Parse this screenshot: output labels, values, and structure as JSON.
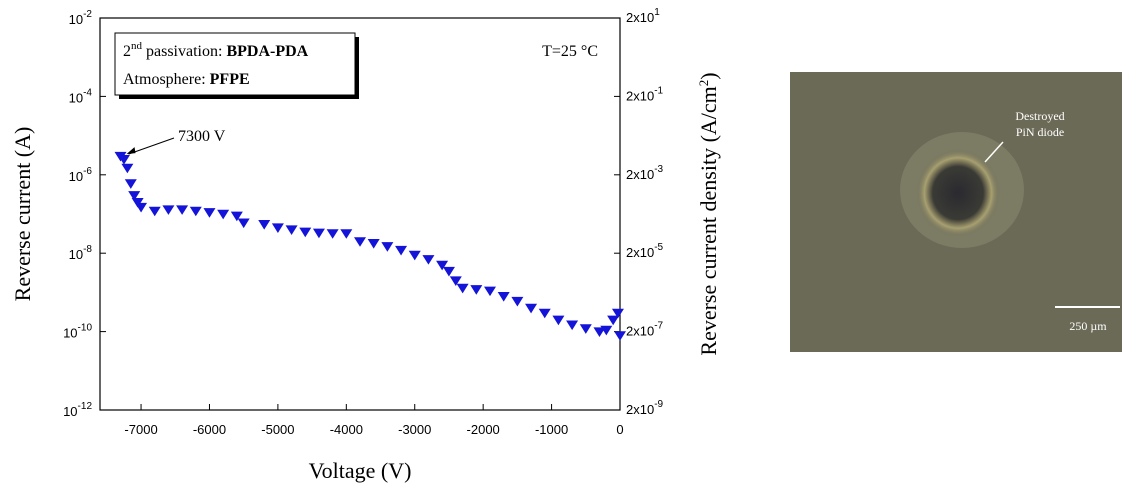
{
  "chart_data": {
    "type": "scatter",
    "x_label": "Voltage (V)",
    "y_label": "Reverse current (A)",
    "y2_label": "Reverse current density (A/cm",
    "y2_label_exp": "2",
    "y2_label_end": ")",
    "legend_box": {
      "line1_prefix": "2",
      "line1_sup": "nd",
      "line1_text": " passivation: ",
      "line1_bold": "BPDA-PDA",
      "line2_text": "Atmosphere: ",
      "line2_bold": "PFPE"
    },
    "temperature_note": "T=25 °C",
    "annotation": "7300 V",
    "color": "#1414d8",
    "marker": "triangle-down",
    "xlim": [
      -7600,
      0
    ],
    "xticks": [
      -7000,
      -6000,
      -5000,
      -4000,
      -3000,
      -2000,
      -1000,
      0
    ],
    "ylim": [
      1e-12,
      0.01
    ],
    "yscale": "log",
    "yticks": [
      {
        "value": 1e-12,
        "label": "10",
        "exp": "-12"
      },
      {
        "value": 1e-10,
        "label": "10",
        "exp": "-10"
      },
      {
        "value": 1e-08,
        "label": "10",
        "exp": "-8"
      },
      {
        "value": 1e-06,
        "label": "10",
        "exp": "-6"
      },
      {
        "value": 0.0001,
        "label": "10",
        "exp": "-4"
      },
      {
        "value": 0.01,
        "label": "10",
        "exp": "-2"
      }
    ],
    "y2lim": [
      2e-09,
      20
    ],
    "y2ticks": [
      {
        "value": 2e-09,
        "label": "2x10",
        "exp": "-9"
      },
      {
        "value": 2e-07,
        "label": "2x10",
        "exp": "-7"
      },
      {
        "value": 2e-05,
        "label": "2x10",
        "exp": "-5"
      },
      {
        "value": 0.002,
        "label": "2x10",
        "exp": "-3"
      },
      {
        "value": 0.2,
        "label": "2x10",
        "exp": "-1"
      },
      {
        "value": 20,
        "label": "2x10",
        "exp": "1"
      }
    ],
    "x": [
      -7300,
      -7250,
      -7200,
      -7150,
      -7100,
      -7050,
      -7000,
      -6800,
      -6600,
      -6400,
      -6200,
      -6000,
      -5800,
      -5600,
      -5500,
      -5200,
      -5000,
      -4800,
      -4600,
      -4400,
      -4200,
      -4000,
      -3800,
      -3600,
      -3400,
      -3200,
      -3000,
      -2800,
      -2600,
      -2500,
      -2400,
      -2300,
      -2100,
      -1900,
      -1700,
      -1500,
      -1300,
      -1100,
      -900,
      -700,
      -500,
      -300,
      -200,
      -100,
      -30,
      0
    ],
    "values": [
      3e-06,
      2.5e-06,
      1.5e-06,
      6e-07,
      3e-07,
      2e-07,
      1.5e-07,
      1.2e-07,
      1.3e-07,
      1.3e-07,
      1.2e-07,
      1.1e-07,
      1e-07,
      9e-08,
      6e-08,
      5.5e-08,
      4.5e-08,
      4e-08,
      3.5e-08,
      3.3e-08,
      3.2e-08,
      3.2e-08,
      2e-08,
      1.8e-08,
      1.5e-08,
      1.2e-08,
      9e-09,
      7e-09,
      5e-09,
      3.5e-09,
      2e-09,
      1.3e-09,
      1.2e-09,
      1.1e-09,
      8e-10,
      6e-10,
      4e-10,
      3e-10,
      2e-10,
      1.5e-10,
      1.2e-10,
      1e-10,
      1.1e-10,
      2e-10,
      3e-10,
      8e-11
    ]
  },
  "photo": {
    "label_line1": "Destroyed",
    "label_line2": "PiN diode",
    "scale_bar": "250 µm"
  }
}
